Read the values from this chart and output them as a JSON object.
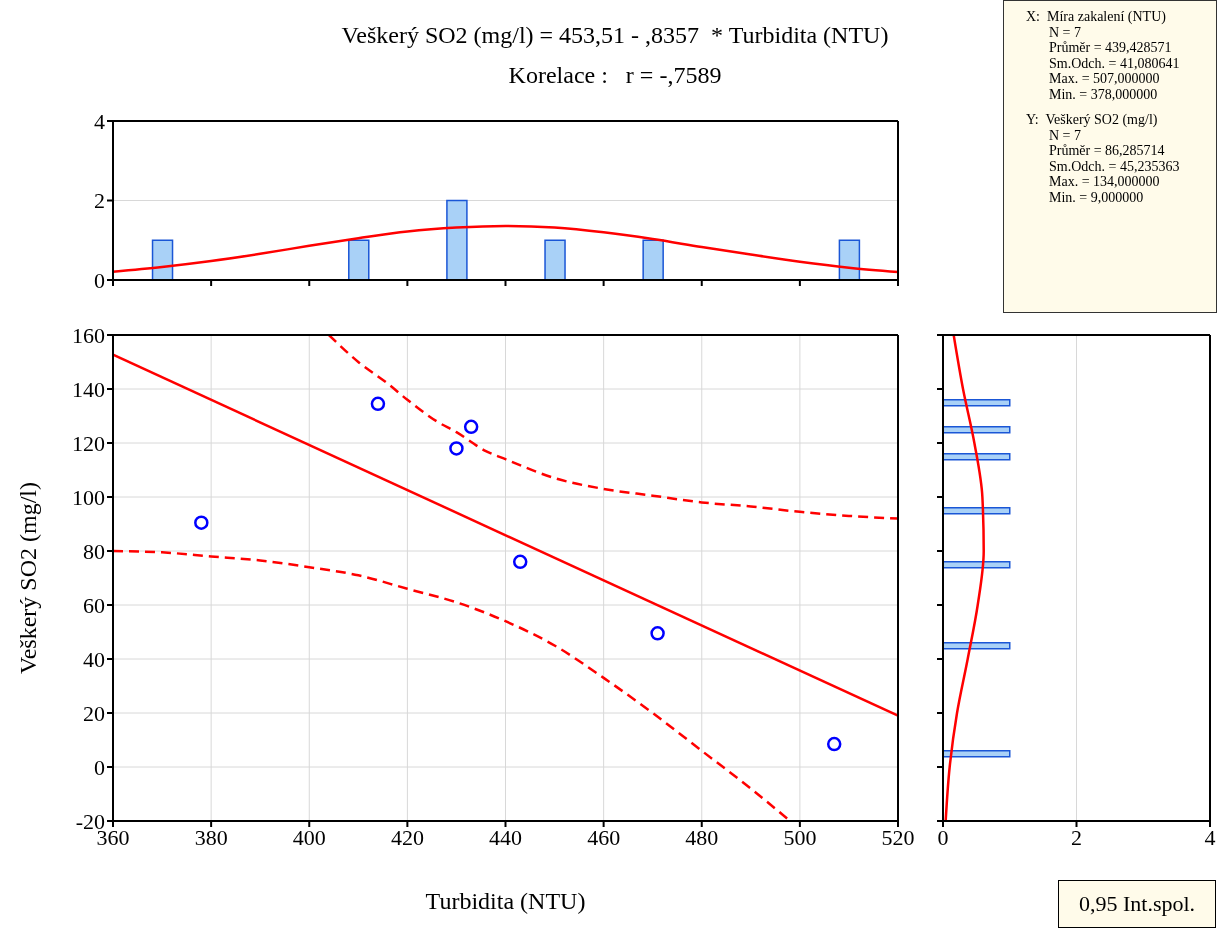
{
  "chart_data": [
    {
      "type": "histogram",
      "title": "Veškerý SO2 (mg/l) = 453,51 - ,8357  * Turbidita (NTU)",
      "subtitle": "Korelace :   r = -,7589",
      "bins": [
        360,
        380,
        400,
        420,
        440,
        460,
        480,
        500,
        520
      ],
      "xlim": [
        360,
        520
      ],
      "xticks": [
        360,
        380,
        400,
        420,
        440,
        460,
        480,
        500,
        520
      ],
      "ylim": [
        0,
        4
      ],
      "yticks": [
        0,
        2,
        4
      ],
      "tick_labels": "y",
      "grid": "y",
      "series": [
        {
          "type": "histogram",
          "color": "#a9d1f7",
          "values": [
            1,
            0,
            1,
            2,
            1,
            1,
            0,
            1
          ]
        },
        {
          "type": "line",
          "color": "#ff0000",
          "x": [
            360,
            370,
            380,
            390,
            400,
            410,
            420,
            430,
            440,
            450,
            460,
            470,
            480,
            490,
            500,
            510,
            520
          ],
          "values": [
            0.21,
            0.33,
            0.48,
            0.66,
            0.86,
            1.05,
            1.22,
            1.32,
            1.36,
            1.32,
            1.2,
            1.03,
            0.83,
            0.64,
            0.46,
            0.31,
            0.2
          ]
        }
      ]
    },
    {
      "type": "other",
      "annotations": [
        "X:  Míra zakalení (NTU)",
        "N = 7",
        "Průměr = 439,428571",
        "Sm.Odch. = 41,080641",
        "Max. = 507,000000",
        "Min. = 378,000000",
        "Y:  Veškerý SO2 (mg/l)",
        "N = 7",
        "Průměr = 86,285714",
        "Sm.Odch. = 45,235363",
        "Max. = 134,000000",
        "Min. = 9,000000"
      ]
    },
    {
      "type": "scatter",
      "xlabel": "Turbidita (NTU)",
      "ylabel": "Veškerý SO2 (mg/l)",
      "xlim": [
        360,
        520
      ],
      "xticks": [
        360,
        380,
        400,
        420,
        440,
        460,
        480,
        500,
        520
      ],
      "ylim": [
        -20,
        160
      ],
      "yticks": [
        -20,
        0,
        20,
        40,
        60,
        80,
        100,
        120,
        140,
        160
      ],
      "grid": true,
      "annotations": [
        "0,95 Int.spol."
      ],
      "series": [
        {
          "type": "scatter",
          "marker": "circle",
          "color": "#0000ff",
          "x": [
            378,
            414,
            430,
            433,
            443,
            471,
            507
          ],
          "values": [
            90.5,
            134.5,
            118,
            126,
            76,
            49.5,
            8.5
          ]
        },
        {
          "type": "line",
          "color": "#ff0000",
          "line_style": "solid",
          "x": [
            360,
            520
          ],
          "values": [
            152.7,
            19.0
          ]
        },
        {
          "type": "line",
          "color": "#ff0000",
          "line_style": "dashed",
          "x": [
            404,
            410,
            416,
            420,
            426,
            430,
            436,
            440,
            450,
            460,
            470,
            480,
            490,
            500,
            510,
            520
          ],
          "values": [
            160,
            150,
            142,
            136,
            128,
            124,
            117,
            114,
            107,
            103,
            100.5,
            98,
            96.5,
            94.5,
            93,
            92
          ]
        },
        {
          "type": "line",
          "color": "#ff0000",
          "line_style": "dashed",
          "x": [
            360,
            370,
            380,
            390,
            400,
            410,
            420,
            430,
            440,
            450,
            460,
            470,
            480,
            490,
            498
          ],
          "values": [
            80,
            79.5,
            78,
            76.5,
            74,
            71,
            66,
            61,
            54,
            45,
            33,
            20,
            6,
            -8,
            -20
          ]
        }
      ]
    },
    {
      "type": "histogram",
      "orientation": "horizontal",
      "bins": [
        -20,
        -10,
        0,
        10,
        20,
        30,
        40,
        50,
        60,
        70,
        80,
        90,
        100,
        110,
        120,
        130,
        140,
        150,
        160
      ],
      "ylim": [
        -20,
        160
      ],
      "yticks": [
        -20,
        0,
        20,
        40,
        60,
        80,
        100,
        120,
        140,
        160
      ],
      "xlim": [
        0,
        4
      ],
      "xticks": [
        0,
        2,
        4
      ],
      "tick_labels": "x",
      "grid": "x",
      "series": [
        {
          "type": "histogram",
          "color": "#a9d1f7",
          "values": [
            0,
            0,
            1,
            0,
            0,
            0,
            1,
            0,
            0,
            1,
            0,
            1,
            0,
            1,
            1,
            1,
            0,
            0
          ]
        },
        {
          "type": "line",
          "color": "#ff0000",
          "x": [
            -20,
            0,
            20,
            40,
            60,
            80,
            100,
            120,
            140,
            160
          ],
          "values": [
            0.04,
            0.1,
            0.21,
            0.37,
            0.52,
            0.61,
            0.59,
            0.47,
            0.3,
            0.16
          ]
        }
      ]
    }
  ]
}
